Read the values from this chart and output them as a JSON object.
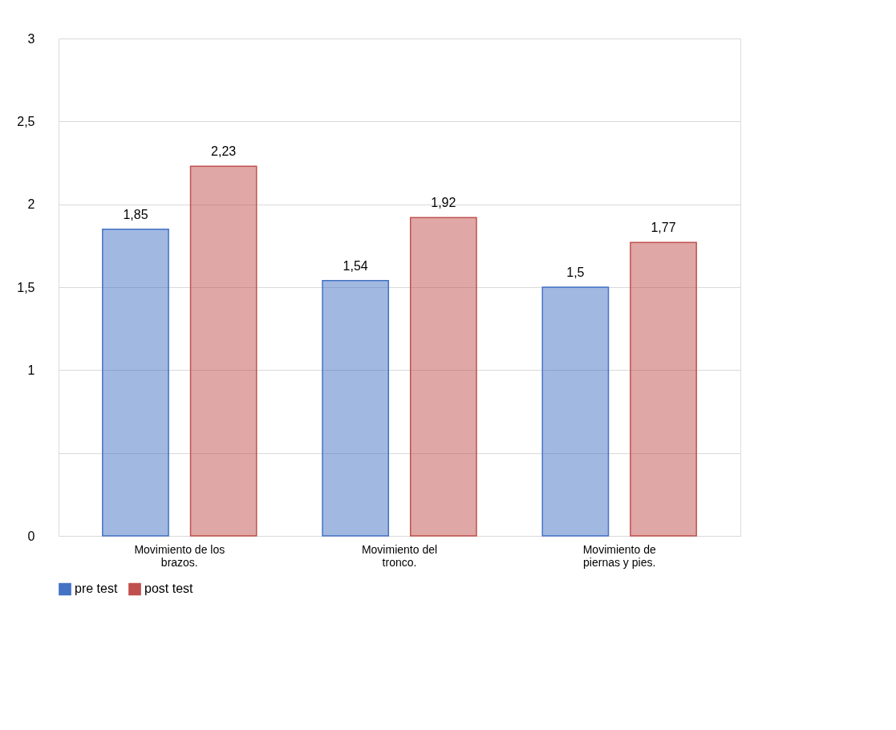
{
  "chart_data": {
    "type": "bar",
    "categories": [
      "Movimiento de los brazos.",
      "Movimiento del tronco.",
      "Movimiento de piernas y pies."
    ],
    "series": [
      {
        "name": "pre test",
        "color": "#4472c4",
        "values": [
          1.85,
          1.54,
          1.5
        ],
        "value_labels": [
          "1,85",
          "1,54",
          "1,5"
        ]
      },
      {
        "name": "post test",
        "color": "#c0504d",
        "values": [
          2.23,
          1.92,
          1.77
        ],
        "value_labels": [
          "2,23",
          "1,92",
          "1,77"
        ]
      }
    ],
    "ylim": [
      0,
      3
    ],
    "yticks": [
      0,
      {
        "value": 0.5,
        "label": null
      },
      1,
      {
        "value": 1.5,
        "label": "1,5"
      },
      2,
      {
        "value": 2.5,
        "label": "2,5"
      },
      3
    ],
    "grid": "y",
    "legend": "bottom"
  }
}
